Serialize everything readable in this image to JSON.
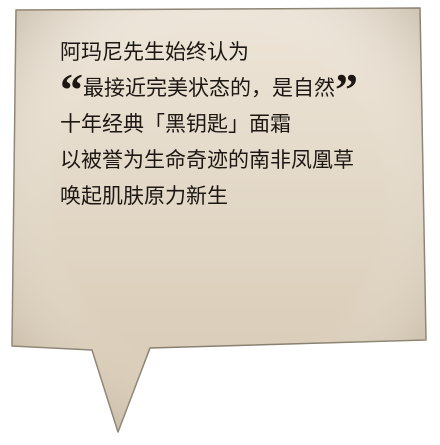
{
  "bubble": {
    "fill_top": "#ede5d8",
    "fill_bottom": "#d9ccb8",
    "stroke": "#8a8070"
  },
  "text": {
    "line1": "阿玛尼先生始终认为",
    "quote_open": "“",
    "line2": "最接近完美状态的，是自然",
    "quote_close": "”",
    "line3": "十年经典「黑钥匙」面霜",
    "line4": "以被誉为生命奇迹的南非凤凰草",
    "line5": "唤起肌肤原力新生"
  }
}
